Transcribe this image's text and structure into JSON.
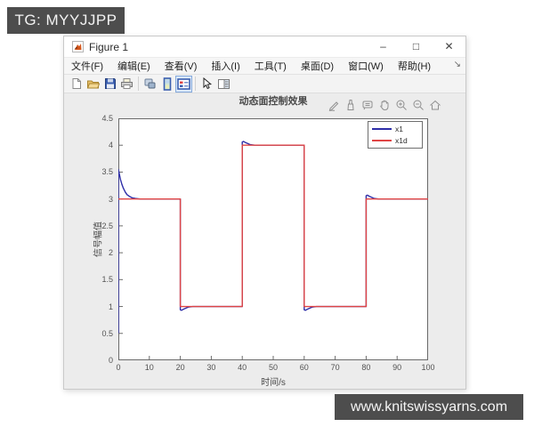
{
  "overlay": {
    "tg_badge": "TG: MYYJJPP",
    "watermark": "www.knitswissyarns.com",
    "bar_color": "#4d4d4d"
  },
  "window": {
    "title": "Figure 1",
    "controls": [
      {
        "name": "minimize",
        "glyph": "–"
      },
      {
        "name": "maximize",
        "glyph": "□"
      },
      {
        "name": "close",
        "glyph": "✕"
      }
    ],
    "menu": [
      "文件(F)",
      "编辑(E)",
      "查看(V)",
      "插入(I)",
      "工具(T)",
      "桌面(D)",
      "窗口(W)",
      "帮助(H)"
    ],
    "dock_glyph": "↘",
    "toolbar_icons": [
      "new-figure",
      "open-file",
      "save-figure",
      "print-figure",
      "link-plot",
      "insert-colorbar",
      "insert-legend",
      "edit-plot",
      "property-inspector"
    ],
    "toolbar_active": "insert-legend",
    "axes_toolbar_icons": [
      "export",
      "brush",
      "datatip",
      "pan",
      "zoom-in",
      "zoom-out",
      "restore-view"
    ]
  },
  "chart_data": {
    "type": "line",
    "title": "动态面控制效果",
    "xlabel": "时间/s",
    "ylabel": "信号幅值",
    "xlim": [
      0,
      100
    ],
    "ylim": [
      0,
      4.5
    ],
    "xticks": [
      0,
      10,
      20,
      30,
      40,
      50,
      60,
      70,
      80,
      90,
      100
    ],
    "yticks": [
      0,
      0.5,
      1,
      1.5,
      2,
      2.5,
      3,
      3.5,
      4,
      4.5
    ],
    "grid": false,
    "legend_position": "northeast",
    "axis_color": "#6a6a6a",
    "series": [
      {
        "name": "x1",
        "color": "#2e2ea8",
        "points": [
          [
            0,
            0.5
          ],
          [
            0,
            3.55
          ],
          [
            0.3,
            3.47
          ],
          [
            0.7,
            3.36
          ],
          [
            1.1,
            3.28
          ],
          [
            1.6,
            3.2
          ],
          [
            2.2,
            3.13
          ],
          [
            2.8,
            3.08
          ],
          [
            3.5,
            3.05
          ],
          [
            4.5,
            3.02
          ],
          [
            5.5,
            3.01
          ],
          [
            7,
            3.0
          ],
          [
            20,
            3.0
          ],
          [
            20,
            0.94
          ],
          [
            20.4,
            0.93
          ],
          [
            21,
            0.95
          ],
          [
            21.8,
            0.97
          ],
          [
            22.6,
            0.99
          ],
          [
            24,
            1.0
          ],
          [
            40,
            1.0
          ],
          [
            40,
            4.06
          ],
          [
            40.4,
            4.07
          ],
          [
            41,
            4.05
          ],
          [
            41.8,
            4.03
          ],
          [
            42.6,
            4.01
          ],
          [
            44,
            4.0
          ],
          [
            60,
            4.0
          ],
          [
            60,
            0.94
          ],
          [
            60.4,
            0.93
          ],
          [
            61,
            0.95
          ],
          [
            61.8,
            0.97
          ],
          [
            62.6,
            0.99
          ],
          [
            64,
            1.0
          ],
          [
            80,
            1.0
          ],
          [
            80,
            3.06
          ],
          [
            80.4,
            3.07
          ],
          [
            81,
            3.05
          ],
          [
            81.8,
            3.03
          ],
          [
            82.6,
            3.01
          ],
          [
            84,
            3.0
          ],
          [
            100,
            3.0
          ]
        ]
      },
      {
        "name": "x1d",
        "color": "#e04545",
        "points": [
          [
            0,
            3
          ],
          [
            20,
            3
          ],
          [
            20,
            1
          ],
          [
            40,
            1
          ],
          [
            40,
            4
          ],
          [
            60,
            4
          ],
          [
            60,
            1
          ],
          [
            80,
            1
          ],
          [
            80,
            3
          ],
          [
            100,
            3
          ]
        ]
      }
    ]
  }
}
